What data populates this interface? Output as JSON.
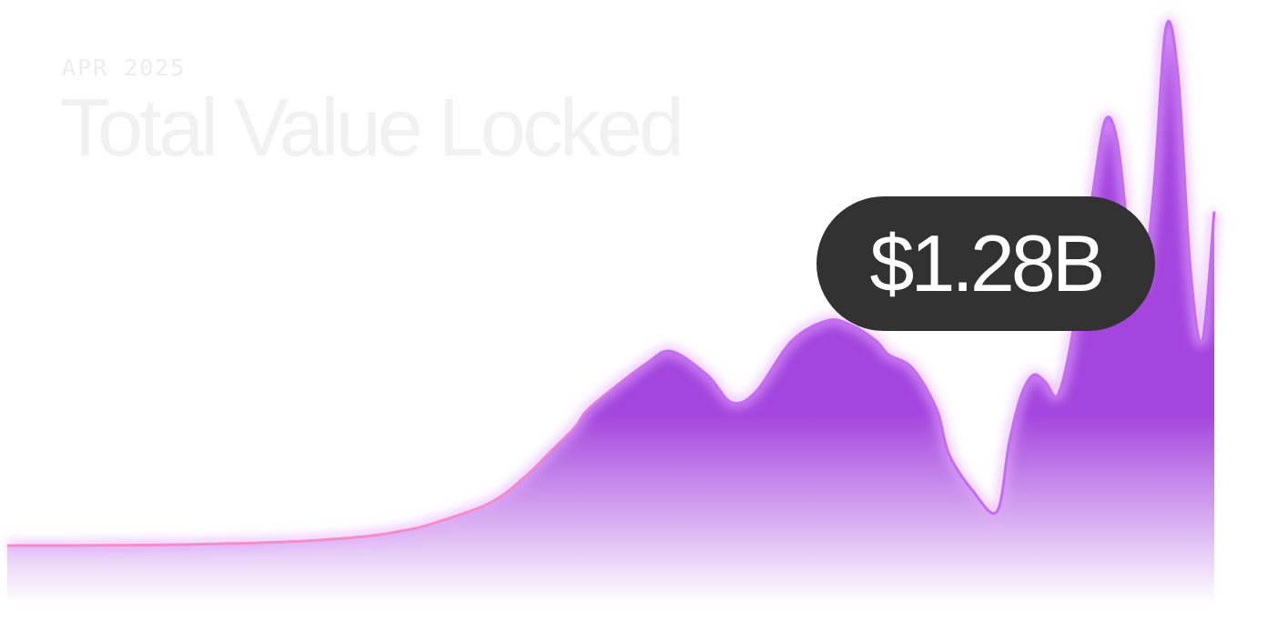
{
  "header": {
    "date": "APR 2025",
    "title": "Total Value Locked"
  },
  "callout": {
    "value": "$1.28B"
  },
  "colors": {
    "area_fill": "#a445de",
    "line_start": "#f38dc6",
    "line_end": "#c56cf0",
    "glow": "#e3a8ff",
    "pill_background": "#323232"
  },
  "chart_data": {
    "type": "area",
    "title": "Total Value Locked",
    "xlabel": "",
    "ylabel": "",
    "grid": false,
    "legend": "none",
    "ylim": [
      0,
      1.6
    ],
    "x": [
      0,
      5,
      10,
      15,
      20,
      25,
      30,
      33,
      35,
      40,
      43,
      45,
      47,
      48,
      50,
      53,
      55,
      58,
      60,
      62,
      65,
      68,
      70,
      72,
      73,
      75,
      77,
      78,
      80,
      82,
      83,
      84,
      85,
      86,
      87,
      88,
      89,
      90,
      91,
      92,
      93,
      94,
      95,
      96,
      97,
      98,
      99,
      100
    ],
    "series": [
      {
        "values": [
          0.0,
          0.0,
          0.001,
          0.003,
          0.007,
          0.014,
          0.028,
          0.045,
          0.062,
          0.125,
          0.205,
          0.275,
          0.345,
          0.395,
          0.455,
          0.535,
          0.57,
          0.5,
          0.42,
          0.45,
          0.6,
          0.66,
          0.645,
          0.6,
          0.56,
          0.52,
          0.4,
          0.27,
          0.16,
          0.1,
          0.3,
          0.44,
          0.5,
          0.48,
          0.44,
          0.57,
          0.8,
          1.05,
          1.25,
          1.18,
          0.88,
          0.77,
          1.05,
          1.52,
          1.38,
          0.82,
          0.6,
          0.98
        ]
      }
    ]
  }
}
